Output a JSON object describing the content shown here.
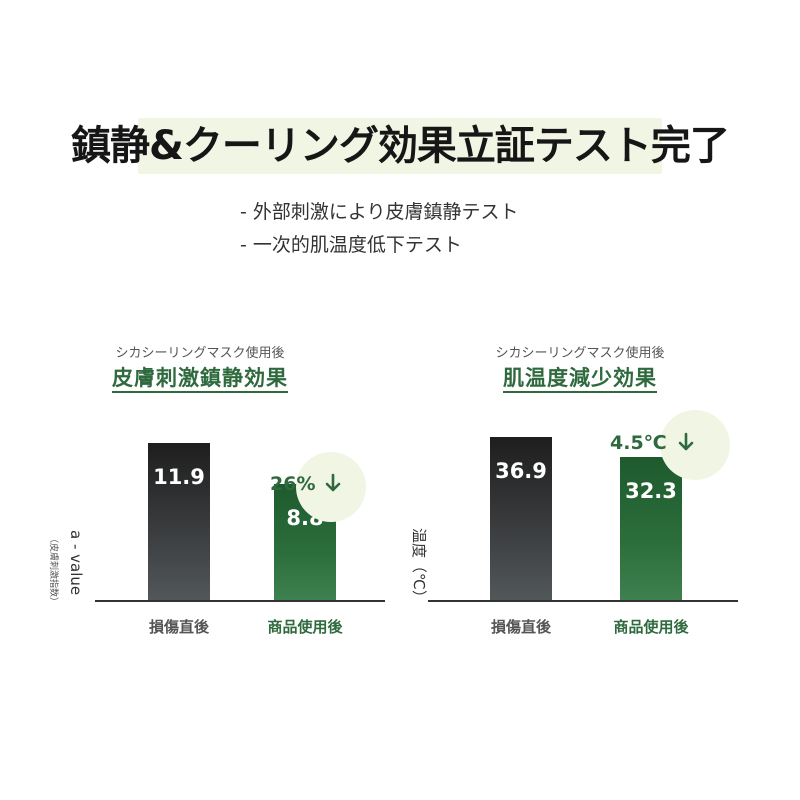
{
  "header": {
    "title": "鎮静&クーリング効果立証テスト完了",
    "subtitles": [
      "- 外部刺激により皮膚鎮静テスト",
      "- 一次的肌温度低下テスト"
    ]
  },
  "colors": {
    "accent_green": "#2f6a3e",
    "highlight": "#f1f5e4",
    "dark_bar": "#2b2d2f",
    "green_bar": "#2a6b3a"
  },
  "icons": {
    "delta_arrow": "down-arrow-icon"
  },
  "chart_data": [
    {
      "type": "bar",
      "pretitle": "シカシーリングマスク使用後",
      "title": "皮膚刺激鎮静効果",
      "ylabel": "a - value",
      "ylabel_note": "（皮膚刺激指数）",
      "categories": [
        "損傷直後",
        "商品使用後"
      ],
      "values": [
        11.9,
        8.8
      ],
      "value_labels": [
        "11.9",
        "8.8"
      ],
      "delta_label": "26%",
      "delta_direction": "down",
      "ylim": [
        0,
        12.6
      ],
      "grid": false
    },
    {
      "type": "bar",
      "pretitle": "シカシーリングマスク使用後",
      "title": "肌温度減少効果",
      "ylabel": "温度（℃）",
      "categories": [
        "損傷直後",
        "商品使用後"
      ],
      "values": [
        36.9,
        32.3
      ],
      "value_labels": [
        "36.9",
        "32.3"
      ],
      "delta_label": "4.5℃",
      "delta_direction": "down",
      "ylim": [
        0,
        37.6
      ],
      "grid": false
    }
  ]
}
